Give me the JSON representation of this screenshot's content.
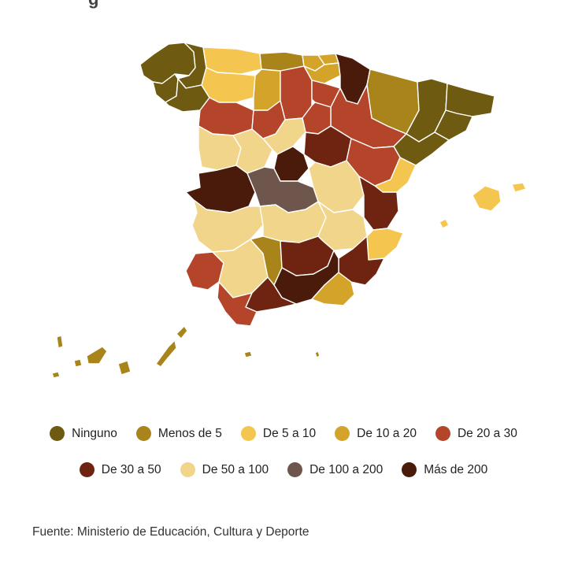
{
  "title_fragment": "g",
  "legend": [
    {
      "label": "Ninguno",
      "color": "#6f5a12"
    },
    {
      "label": "Menos de 5",
      "color": "#a8841a"
    },
    {
      "label": "De 5 a 10",
      "color": "#f5c64f"
    },
    {
      "label": "De 10 a 20",
      "color": "#d4a42a"
    },
    {
      "label": "De 20 a 30",
      "color": "#b5452a"
    },
    {
      "label": "De 30 a 50",
      "color": "#6e2410"
    },
    {
      "label": "De 50 a 100",
      "color": "#f0d58a"
    },
    {
      "label": "De 100 a 200",
      "color": "#6e564c"
    },
    {
      "label": "Más de 200",
      "color": "#4a1a0a"
    }
  ],
  "source": "Fuente: Ministerio de Educación, Cultura y Deporte"
}
